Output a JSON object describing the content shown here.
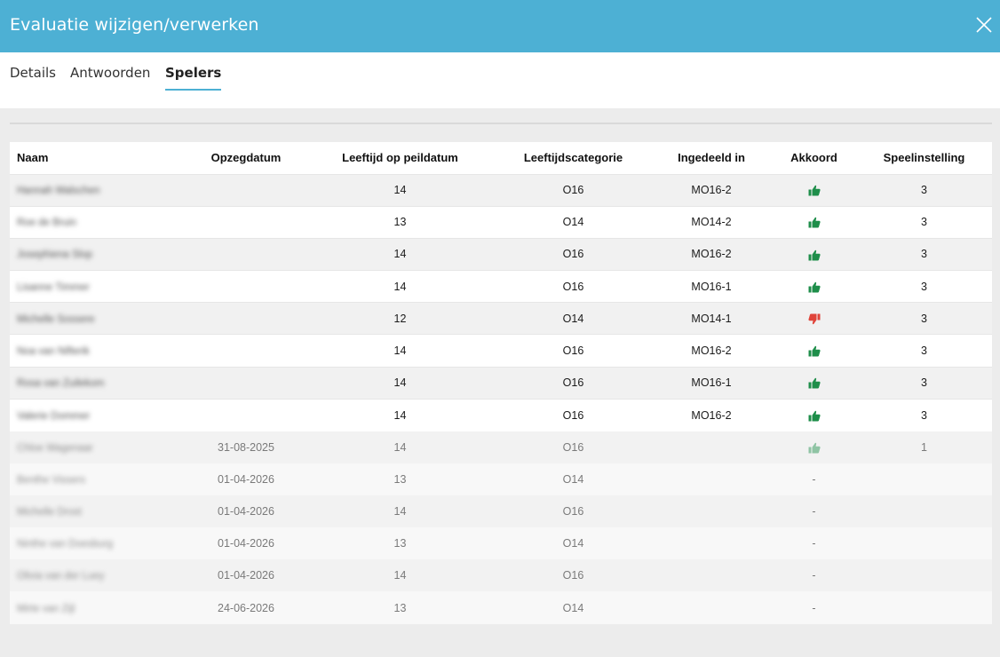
{
  "header": {
    "title": "Evaluatie wijzigen/verwerken"
  },
  "tabs": [
    {
      "label": "Details",
      "active": false
    },
    {
      "label": "Antwoorden",
      "active": false
    },
    {
      "label": "Spelers",
      "active": true
    }
  ],
  "colors": {
    "header_bg": "#4db0d4",
    "thumb_up": "#1e8e4a",
    "thumb_down": "#e0443a",
    "thumb_up_faded": "#8fc4a4"
  },
  "table": {
    "columns": [
      "Naam",
      "Opzegdatum",
      "Leeftijd op peildatum",
      "Leeftijdscategorie",
      "Ingedeeld in",
      "Akkoord",
      "Speelinstelling"
    ],
    "rows": [
      {
        "name": "Hannah Walschen",
        "opzegdatum": "",
        "leeftijd": "14",
        "categorie": "O16",
        "ingedeeld": "MO16-2",
        "akkoord": "thumb-up-icon",
        "speelinstelling": "3",
        "status": "active"
      },
      {
        "name": "Roe de Bruin",
        "opzegdatum": "",
        "leeftijd": "13",
        "categorie": "O14",
        "ingedeeld": "MO14-2",
        "akkoord": "thumb-up-icon",
        "speelinstelling": "3",
        "status": "active"
      },
      {
        "name": "Josephiena Slop",
        "opzegdatum": "",
        "leeftijd": "14",
        "categorie": "O16",
        "ingedeeld": "MO16-2",
        "akkoord": "thumb-up-icon",
        "speelinstelling": "3",
        "status": "active"
      },
      {
        "name": "Lisanne Timmer",
        "opzegdatum": "",
        "leeftijd": "14",
        "categorie": "O16",
        "ingedeeld": "MO16-1",
        "akkoord": "thumb-up-icon",
        "speelinstelling": "3",
        "status": "active"
      },
      {
        "name": "Michelle Sossere",
        "opzegdatum": "",
        "leeftijd": "12",
        "categorie": "O14",
        "ingedeeld": "MO14-1",
        "akkoord": "thumb-down-icon",
        "speelinstelling": "3",
        "status": "active"
      },
      {
        "name": "Noa van Nifterik",
        "opzegdatum": "",
        "leeftijd": "14",
        "categorie": "O16",
        "ingedeeld": "MO16-2",
        "akkoord": "thumb-up-icon",
        "speelinstelling": "3",
        "status": "active"
      },
      {
        "name": "Rosa van Zuilekom",
        "opzegdatum": "",
        "leeftijd": "14",
        "categorie": "O16",
        "ingedeeld": "MO16-1",
        "akkoord": "thumb-up-icon",
        "speelinstelling": "3",
        "status": "active"
      },
      {
        "name": "Valerie Dommer",
        "opzegdatum": "",
        "leeftijd": "14",
        "categorie": "O16",
        "ingedeeld": "MO16-2",
        "akkoord": "thumb-up-icon",
        "speelinstelling": "3",
        "status": "active"
      },
      {
        "name": "Chloe Wagenaar",
        "opzegdatum": "31-08-2025",
        "leeftijd": "14",
        "categorie": "O16",
        "ingedeeld": "",
        "akkoord": "thumb-up-faded-icon",
        "speelinstelling": "1",
        "status": "inactive"
      },
      {
        "name": "Benthe Vissers",
        "opzegdatum": "01-04-2026",
        "leeftijd": "13",
        "categorie": "O14",
        "ingedeeld": "",
        "akkoord": "-",
        "speelinstelling": "",
        "status": "inactive"
      },
      {
        "name": "Michelle Drost",
        "opzegdatum": "01-04-2026",
        "leeftijd": "14",
        "categorie": "O16",
        "ingedeeld": "",
        "akkoord": "-",
        "speelinstelling": "",
        "status": "inactive"
      },
      {
        "name": "Ninthe van Doesburg",
        "opzegdatum": "01-04-2026",
        "leeftijd": "13",
        "categorie": "O14",
        "ingedeeld": "",
        "akkoord": "-",
        "speelinstelling": "",
        "status": "inactive"
      },
      {
        "name": "Olivia van der Luey",
        "opzegdatum": "01-04-2026",
        "leeftijd": "14",
        "categorie": "O16",
        "ingedeeld": "",
        "akkoord": "-",
        "speelinstelling": "",
        "status": "inactive"
      },
      {
        "name": "Mirte van Zijl",
        "opzegdatum": "24-06-2026",
        "leeftijd": "13",
        "categorie": "O14",
        "ingedeeld": "",
        "akkoord": "-",
        "speelinstelling": "",
        "status": "inactive"
      }
    ]
  }
}
